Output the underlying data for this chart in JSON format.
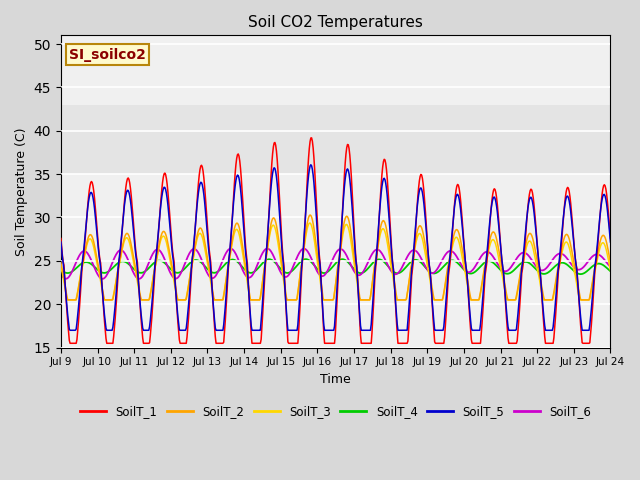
{
  "title": "Soil CO2 Temperatures",
  "xlabel": "Time",
  "ylabel": "Soil Temperature (C)",
  "ylim": [
    15,
    51
  ],
  "yticks": [
    15,
    20,
    25,
    30,
    35,
    40,
    45,
    50
  ],
  "annotation": "SI_soilco2",
  "annotation_color": "#8B0000",
  "annotation_bg": "#FFFACD",
  "annotation_border": "#B8860B",
  "series_colors": {
    "SoilT_1": "#FF0000",
    "SoilT_2": "#FFA500",
    "SoilT_3": "#FFD700",
    "SoilT_4": "#00CC00",
    "SoilT_5": "#0000CD",
    "SoilT_6": "#CC00CC"
  },
  "shaded_band": [
    35,
    43
  ],
  "shaded_color": "#DCDCDC",
  "background_color": "#D8D8D8",
  "plot_bg_color": "#F0F0F0",
  "grid_color": "#FFFFFF",
  "n_points": 720
}
